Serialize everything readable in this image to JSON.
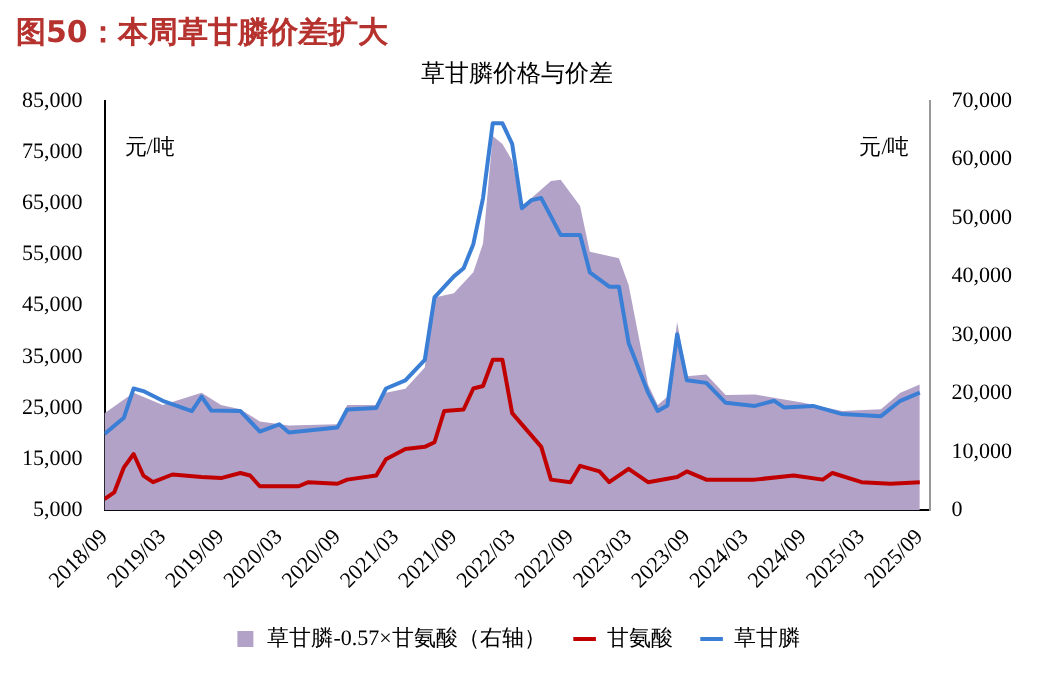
{
  "chart_data": {
    "type": "line",
    "title": "图50：本周草甘膦价差扩大",
    "subtitle": "草甘膦价格与价差",
    "ylabel": "元/吨",
    "y2label": "元/吨",
    "xlim": [
      "2018-09",
      "2025-10"
    ],
    "xticks": [
      {
        "value": "2018-09",
        "label": "2018/09"
      },
      {
        "value": "2019-03",
        "label": "2019/03"
      },
      {
        "value": "2019-09",
        "label": "2019/09"
      },
      {
        "value": "2020-03",
        "label": "2020/03"
      },
      {
        "value": "2020-09",
        "label": "2020/09"
      },
      {
        "value": "2021-03",
        "label": "2021/03"
      },
      {
        "value": "2021-09",
        "label": "2021/09"
      },
      {
        "value": "2022-03",
        "label": "2022/03"
      },
      {
        "value": "2022-09",
        "label": "2022/09"
      },
      {
        "value": "2023-03",
        "label": "2023/03"
      },
      {
        "value": "2023-09",
        "label": "2023/09"
      },
      {
        "value": "2024-03",
        "label": "2024/03"
      },
      {
        "value": "2024-09",
        "label": "2024/09"
      },
      {
        "value": "2025-03",
        "label": "2025/03"
      },
      {
        "value": "2025-09",
        "label": "2025/09"
      }
    ],
    "ylim": [
      5000,
      85000
    ],
    "yticks": [
      {
        "value": 5000,
        "label": "5,000"
      },
      {
        "value": 15000,
        "label": "15,000"
      },
      {
        "value": 25000,
        "label": "25,000"
      },
      {
        "value": 35000,
        "label": "35,000"
      },
      {
        "value": 45000,
        "label": "45,000"
      },
      {
        "value": 55000,
        "label": "55,000"
      },
      {
        "value": 65000,
        "label": "65,000"
      },
      {
        "value": 75000,
        "label": "75,000"
      },
      {
        "value": 85000,
        "label": "85,000"
      }
    ],
    "y2lim": [
      0,
      70000
    ],
    "y2ticks": [
      0,
      {
        "value": 10000,
        "label": "10,000"
      },
      {
        "value": 20000,
        "label": "20,000"
      },
      {
        "value": 30000,
        "label": "30,000"
      },
      {
        "value": 40000,
        "label": "40,000"
      },
      {
        "value": 50000,
        "label": "50,000"
      },
      {
        "value": 60000,
        "label": "60,000"
      },
      {
        "value": 70000,
        "label": "70,000"
      }
    ],
    "grid": false,
    "legend": "bottom",
    "marker": "none",
    "line_style": "solid",
    "series": [
      {
        "name": "草甘膦-0.57×甘氨酸（右轴）",
        "type": "area",
        "axis": "y2",
        "color": "#b3a2c8",
        "x": [
          "2018-09",
          "2018-12",
          "2019-03",
          "2019-07",
          "2019-09",
          "2019-11",
          "2020-01",
          "2020-04",
          "2020-09",
          "2020-10",
          "2021-01",
          "2021-02",
          "2021-04",
          "2021-06",
          "2021-07",
          "2021-09",
          "2021-11",
          "2021-12",
          "2022-01",
          "2022-02",
          "2022-03",
          "2022-04",
          "2022-05",
          "2022-07",
          "2022-08",
          "2022-10",
          "2022-11",
          "2023-02",
          "2023-03",
          "2023-05",
          "2023-06",
          "2023-07",
          "2023-08",
          "2023-09",
          "2023-11",
          "2024-01",
          "2024-04",
          "2024-09",
          "2025-01",
          "2025-05",
          "2025-07",
          "2025-09"
        ],
        "values": [
          16600,
          20100,
          18000,
          20100,
          18000,
          17300,
          15200,
          14500,
          14700,
          18000,
          18000,
          20100,
          20800,
          24400,
          36400,
          37100,
          40700,
          45600,
          64000,
          62600,
          59800,
          52000,
          53400,
          56300,
          56500,
          52000,
          44200,
          43100,
          38500,
          21500,
          18000,
          19400,
          32200,
          22900,
          23200,
          19700,
          19800,
          18400,
          17000,
          17300,
          20100,
          21500
        ]
      },
      {
        "name": "甘氨酸",
        "type": "line",
        "color": "#c00000",
        "x": [
          "2018-09",
          "2018-10",
          "2018-11",
          "2018-12",
          "2019-01",
          "2019-02",
          "2019-04",
          "2019-07",
          "2019-09",
          "2019-11",
          "2019-12",
          "2020-01",
          "2020-05",
          "2020-06",
          "2020-09",
          "2020-10",
          "2021-01",
          "2021-02",
          "2021-04",
          "2021-06",
          "2021-07",
          "2021-08",
          "2021-10",
          "2021-11",
          "2021-12",
          "2022-01",
          "2022-02",
          "2022-03",
          "2022-05",
          "2022-06",
          "2022-07",
          "2022-09",
          "2022-10",
          "2022-12",
          "2023-01",
          "2023-03",
          "2023-05",
          "2023-08",
          "2023-09",
          "2023-11",
          "2024-04",
          "2024-08",
          "2024-11",
          "2024-12",
          "2025-03",
          "2025-06",
          "2025-09"
        ],
        "values": [
          7200,
          8500,
          13400,
          16000,
          11800,
          10500,
          12000,
          11500,
          11300,
          12300,
          11800,
          9700,
          9700,
          10500,
          10200,
          11000,
          11800,
          15000,
          17000,
          17400,
          18300,
          24400,
          24700,
          28800,
          29300,
          34400,
          34400,
          24000,
          19600,
          17400,
          11000,
          10500,
          13700,
          12600,
          10500,
          13100,
          10500,
          11500,
          12600,
          11000,
          11000,
          11800,
          11000,
          12300,
          10500,
          10200,
          10500
        ]
      },
      {
        "name": "草甘膦",
        "type": "line",
        "color": "#3a7fd5",
        "x": [
          "2018-09",
          "2018-11",
          "2018-12",
          "2019-01",
          "2019-03",
          "2019-06",
          "2019-07",
          "2019-08",
          "2019-11",
          "2020-01",
          "2020-03",
          "2020-04",
          "2020-09",
          "2020-10",
          "2021-01",
          "2021-02",
          "2021-04",
          "2021-06",
          "2021-07",
          "2021-09",
          "2021-10",
          "2021-11",
          "2021-12",
          "2022-01",
          "2022-02",
          "2022-03",
          "2022-04",
          "2022-05",
          "2022-06",
          "2022-08",
          "2022-10",
          "2022-11",
          "2023-01",
          "2023-02",
          "2023-03",
          "2023-05",
          "2023-06",
          "2023-07",
          "2023-08",
          "2023-09",
          "2023-11",
          "2024-01",
          "2024-04",
          "2024-06",
          "2024-07",
          "2024-10",
          "2025-01",
          "2025-05",
          "2025-07",
          "2025-09"
        ],
        "values": [
          19900,
          23100,
          28800,
          28300,
          26400,
          24400,
          27200,
          24500,
          24400,
          20400,
          21800,
          20200,
          21200,
          24700,
          25000,
          28800,
          30400,
          34400,
          46600,
          50700,
          52300,
          57000,
          66000,
          80600,
          80600,
          76600,
          64000,
          65600,
          66000,
          58800,
          58800,
          51500,
          48700,
          48700,
          37700,
          28000,
          24400,
          25500,
          39400,
          30400,
          29900,
          26000,
          25400,
          26400,
          25100,
          25400,
          23800,
          23400,
          26400,
          28000
        ]
      }
    ]
  }
}
